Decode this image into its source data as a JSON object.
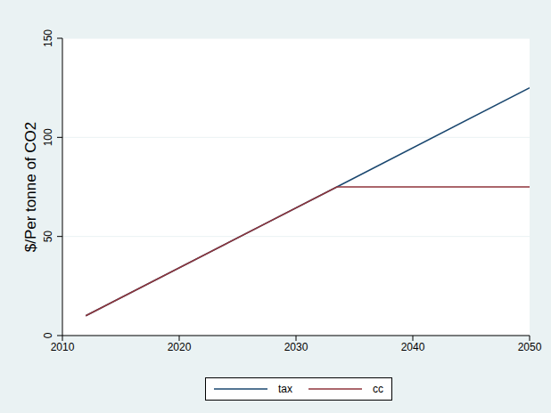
{
  "chart_data": {
    "type": "line",
    "y_label": "$/Per tonne of CO2",
    "x": [
      2012,
      2033.5,
      2050
    ],
    "series": [
      {
        "name": "tax",
        "color": "#1a476f",
        "values": [
          10,
          75,
          125
        ]
      },
      {
        "name": "cc",
        "color": "#90353b",
        "values": [
          10,
          75,
          75
        ]
      }
    ],
    "xlim": [
      2010,
      2050
    ],
    "xticks": [
      2010,
      2020,
      2030,
      2040,
      2050
    ],
    "ylim": [
      0,
      150
    ],
    "yticks": [
      0,
      50,
      100,
      150
    ],
    "grid": true,
    "legend": "bottom"
  }
}
